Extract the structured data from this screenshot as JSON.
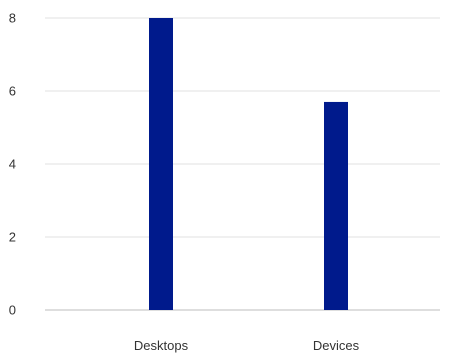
{
  "chart_data": {
    "type": "bar",
    "categories": [
      "Desktops",
      "Devices"
    ],
    "values": [
      8,
      5.7
    ],
    "ylim": [
      0,
      8
    ],
    "yticks": [
      0,
      2,
      4,
      6,
      8
    ],
    "ytick_labels": [
      "0",
      "2",
      "4",
      "6",
      "8"
    ],
    "grid": true,
    "title": "",
    "xlabel": "",
    "ylabel": "",
    "colors": {
      "bar": "#001a8c",
      "grid": "#e0e0e0",
      "axis": "#bdbdbd",
      "text": "#333333"
    }
  }
}
